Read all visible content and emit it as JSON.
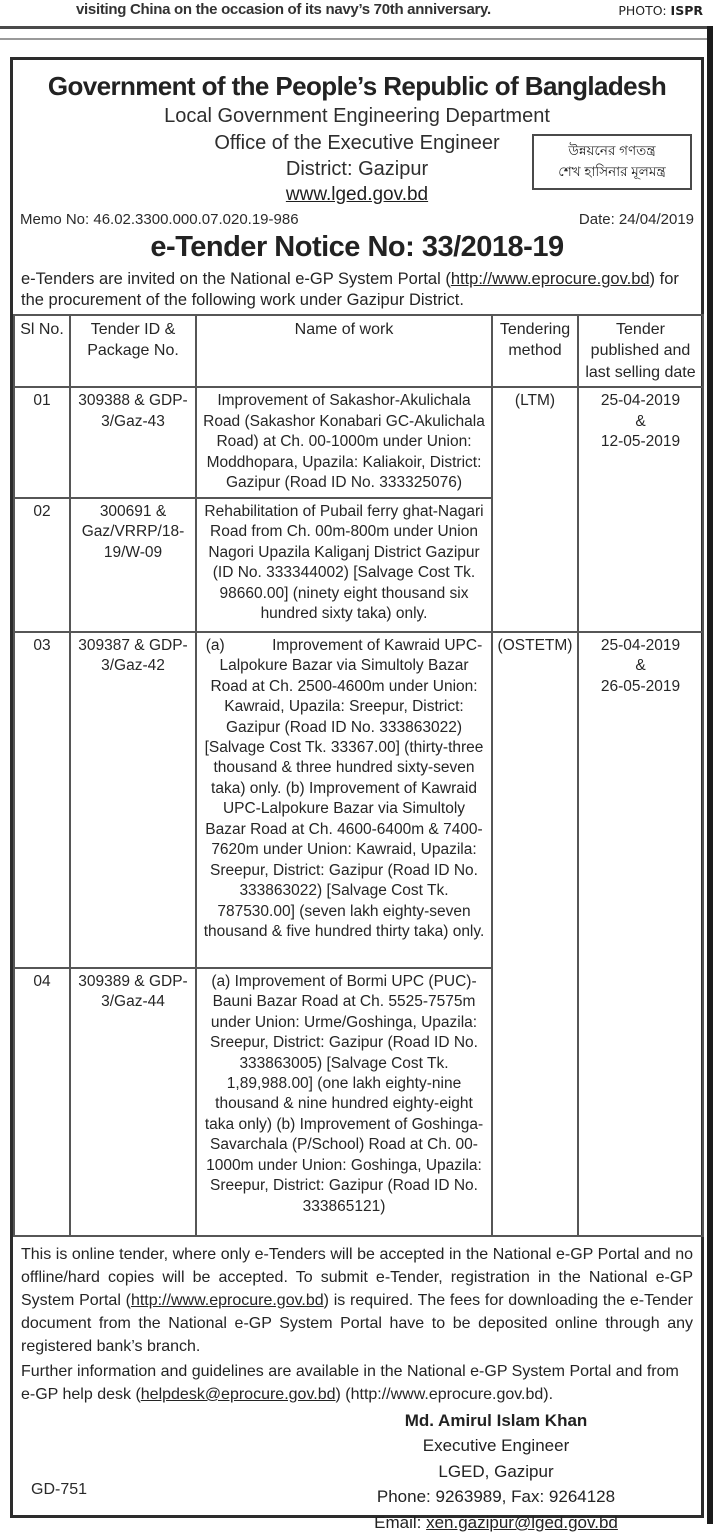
{
  "top": {
    "caption": "visiting China on the occasion of its navy’s 70th anniversary.",
    "photo_label": "PHOTO: ",
    "photo_value": "ISPR"
  },
  "header": {
    "govt_title": "Government of the People’s Republic of Bangladesh",
    "department": "Local Government Engineering Department",
    "office": "Office of the Executive Engineer",
    "district": "District: Gazipur",
    "website": "www.lged.gov.bd",
    "slogan_line1": "উন্নয়নের গণতন্ত্র",
    "slogan_line2": "শেখ হাসিনার মূলমন্ত্র",
    "memo_no": "Memo No: 46.02.3300.000.07.020.19-986",
    "date": "Date: 24/04/2019"
  },
  "notice": {
    "title": "e-Tender Notice No: 33/2018-19",
    "intro_before_url": "e-Tenders are invited on the National e-GP System Portal (",
    "intro_url": "http://www.eprocure.gov.bd",
    "intro_after_url": ") for the procurement of the following work under Gazipur District."
  },
  "table": {
    "headers": {
      "sl": "Sl No.",
      "tender_id": "Tender ID & Package No.",
      "work": "Name of work",
      "method": "Tendering method",
      "dates": "Tender published and last selling date"
    },
    "rows": [
      {
        "sl": "01",
        "tender_id": "309388 & GDP-3/Gaz-43",
        "work": "Improvement of Sakashor-Akulichala Road (Sakashor Konabari GC-Akulichala Road) at Ch. 00-1000m under Union: Moddhopara, Upazila: Kaliakoir, District: Gazipur (Road ID No. 333325076)"
      },
      {
        "sl": "02",
        "tender_id": "300691 & Gaz/VRRP/18-19/W-09",
        "work": "Rehabilitation of Pubail ferry ghat-Nagari Road from Ch. 00m-800m under Union Nagori Upazila  Kaliganj District Gazipur (ID No. 333344002) [Salvage Cost Tk. 98660.00] (ninety eight thousand six hundred sixty taka) only."
      },
      {
        "sl": "03",
        "tender_id": "309387 & GDP-3/Gaz-42",
        "work": "(a)           Improvement of Kawraid UPC-Lalpokure Bazar via Simultoly Bazar Road at Ch. 2500-4600m under Union: Kawraid, Upazila: Sreepur, District: Gazipur (Road ID No. 333863022) [Salvage Cost Tk. 33367.00] (thirty-three thousand & three hundred sixty-seven taka) only. (b) Improvement of Kawraid UPC-Lalpokure Bazar via Simultoly Bazar Road at Ch. 4600-6400m & 7400-7620m under Union: Kawraid, Upazila: Sreepur, District: Gazipur (Road ID No. 333863022) [Salvage Cost Tk. 787530.00] (seven lakh eighty-seven thousand & five hundred thirty taka) only."
      },
      {
        "sl": "04",
        "tender_id": "309389 & GDP-3/Gaz-44",
        "work": "(a) Improvement of Bormi UPC (PUC)-Bauni Bazar Road at Ch. 5525-7575m under Union: Urme/Goshinga, Upazila: Sreepur, District: Gazipur (Road ID No. 333863005) [Salvage Cost Tk. 1,89,988.00] (one lakh eighty-nine thousand & nine hundred eighty-eight taka only) (b) Improvement of Goshinga-Savarchala (P/School) Road at Ch. 00-1000m under Union: Goshinga, Upazila: Sreepur, District: Gazipur (Road ID No. 333865121)"
      }
    ],
    "merged": [
      {
        "method": "(LTM)",
        "dates": "25-04-2019\n&\n12-05-2019"
      },
      {
        "method": "(OSTETM)",
        "dates": "25-04-2019\n&\n26-05-2019"
      }
    ]
  },
  "footer": {
    "para1_before_url": "This is online tender, where only e-Tenders will be accepted in the National e-GP Portal and no offline/hard copies will be accepted. To submit e-Tender, registration in the National e-GP System Portal (",
    "para1_url": "http://www.eprocure.gov.bd",
    "para1_after_url": ") is required. The fees for downloading the e-Tender document from the National e-GP System Portal have to be deposited online through any registered bank’s branch.",
    "para2_before_email": "Further information and guidelines are available in the National e-GP  System Portal and from e-GP help desk (",
    "para2_email": "helpdesk@eprocure.gov.bd",
    "para2_after_email": ") (http://www.eprocure.gov.bd).",
    "signature": {
      "name": "Md. Amirul Islam Khan",
      "title": "Executive Engineer",
      "org": "LGED, Gazipur",
      "phone_fax": "Phone: 9263989, Fax: 9264128",
      "email_label": "Email: ",
      "email": "xen.gazipur@lged.gov.bd"
    },
    "gd_number": "GD-751"
  }
}
